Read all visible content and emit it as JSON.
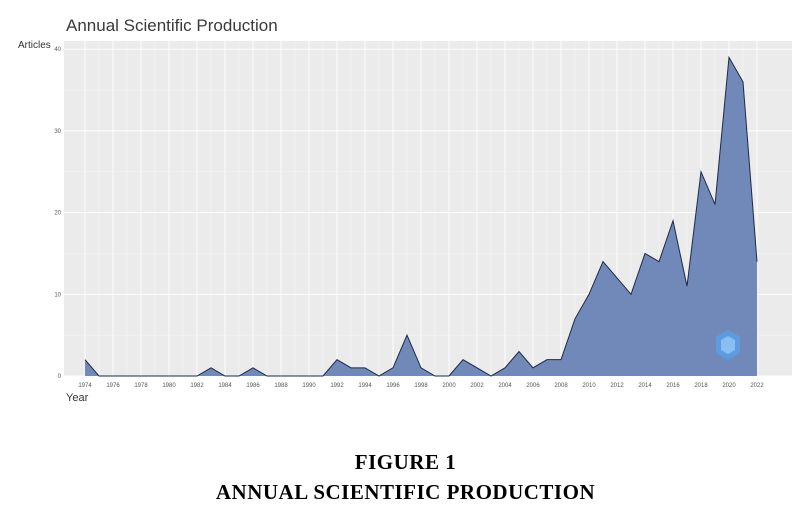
{
  "chart_data": {
    "type": "area",
    "title": "Annual Scientific Production",
    "xlabel": "Year",
    "ylabel": "Articles",
    "x": [
      1974,
      1975,
      1976,
      1977,
      1978,
      1979,
      1980,
      1981,
      1982,
      1983,
      1984,
      1985,
      1986,
      1987,
      1988,
      1989,
      1990,
      1991,
      1992,
      1993,
      1994,
      1995,
      1996,
      1997,
      1998,
      1999,
      2000,
      2001,
      2002,
      2003,
      2004,
      2005,
      2006,
      2007,
      2008,
      2009,
      2010,
      2011,
      2012,
      2013,
      2014,
      2015,
      2016,
      2017,
      2018,
      2019,
      2020,
      2021,
      2022
    ],
    "values": [
      2,
      0,
      0,
      0,
      0,
      0,
      0,
      0,
      0,
      1,
      0,
      0,
      1,
      0,
      0,
      0,
      0,
      0,
      2,
      1,
      1,
      0,
      1,
      5,
      1,
      0,
      0,
      2,
      1,
      0,
      1,
      3,
      1,
      2,
      2,
      7,
      10,
      14,
      12,
      10,
      15,
      14,
      19,
      11,
      25,
      21,
      39,
      36,
      14
    ],
    "xticks": [
      "1974",
      "1976",
      "1978",
      "1980",
      "1982",
      "1984",
      "1986",
      "1988",
      "1990",
      "1992",
      "1994",
      "1996",
      "1998",
      "2000",
      "2002",
      "2004",
      "2006",
      "2008",
      "2010",
      "2012",
      "2014",
      "2016",
      "2018",
      "2020",
      "2022"
    ],
    "yticks": [
      "0",
      "10",
      "20",
      "30",
      "40"
    ],
    "xlim": [
      1972.5,
      2024.5
    ],
    "ylim": [
      0,
      41
    ],
    "grid": true,
    "fill_color": "#7189b8",
    "line_color": "#1d2a44",
    "panel_color": "#ebebeb"
  },
  "figure_caption": {
    "line1": "FIGURE 1",
    "line2": "ANNUAL SCIENTIFIC PRODUCTION"
  }
}
